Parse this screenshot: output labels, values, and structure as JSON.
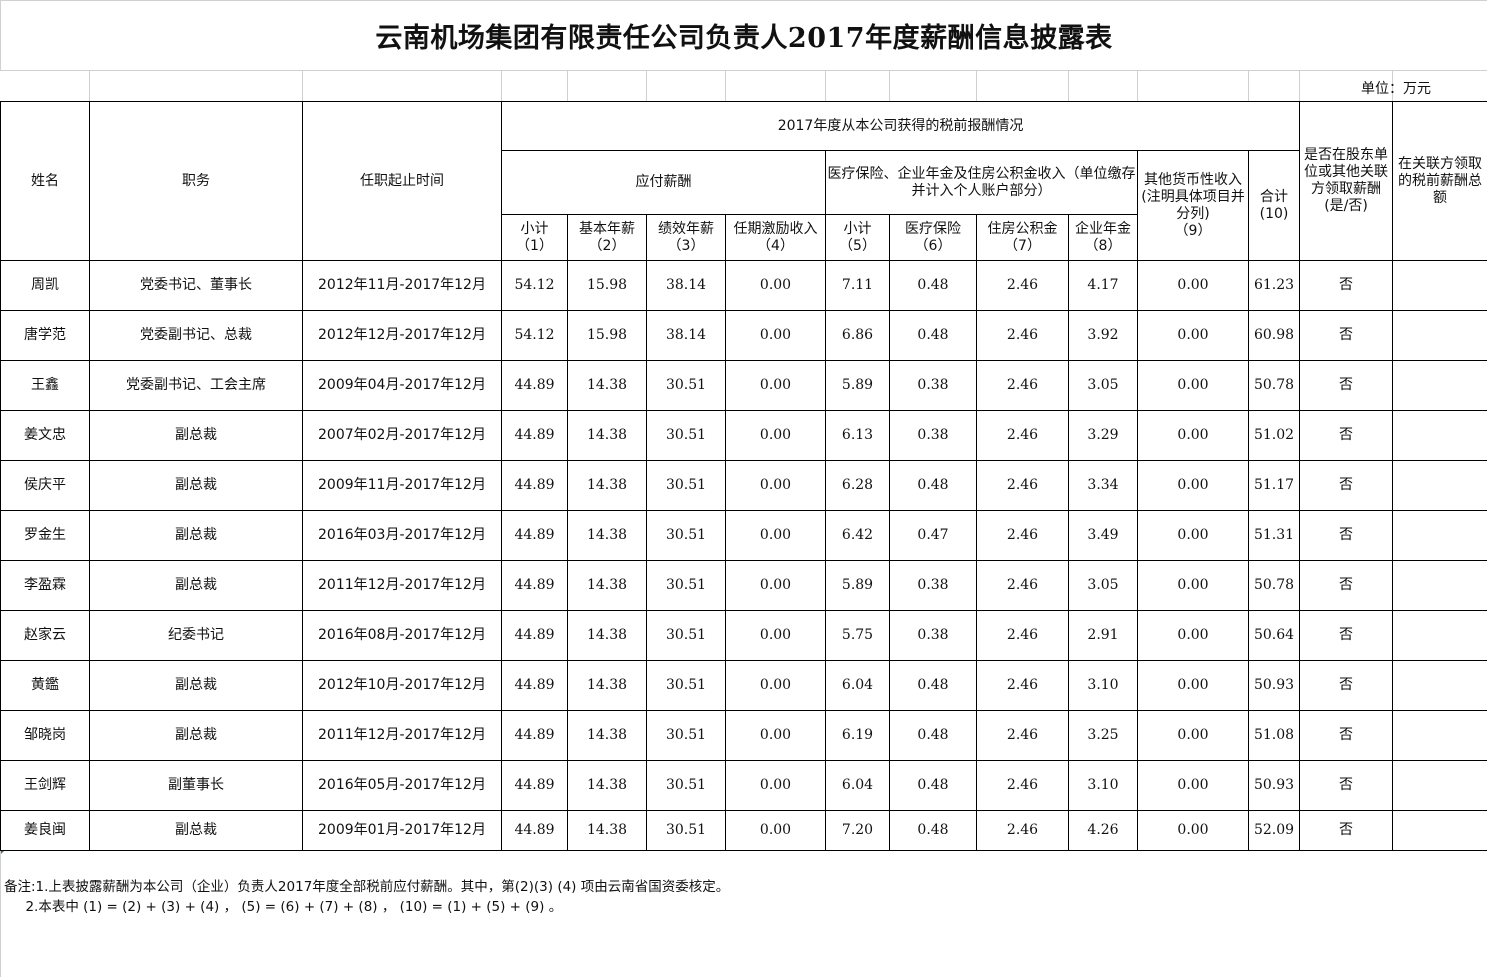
{
  "title": "云南机场集团有限责任公司负责人2017年度薪酬信息披露表",
  "unit": "单位：万元",
  "headers": {
    "name": "姓名",
    "position": "职务",
    "term": "任职起止时间",
    "pretax_group": "2017年度从本公司获得的税前报酬情况",
    "payable_group": "应付薪酬",
    "insurance_group": "医疗保险、企业年金及住房公积金收入（单位缴存并计入个人账户部分）",
    "subtotal1": "小计\n（1）",
    "base_salary": "基本年薪\n（2）",
    "performance_salary": "绩效年薪\n（3）",
    "incentive": "任期激励收入\n（4）",
    "subtotal5": "小计\n（5）",
    "medical": "医疗保险\n（6）",
    "housing_fund": "住房公积金\n（7）",
    "annuity": "企业年金\n（8）",
    "other_income": "其他货币性收入(注明具体项目并分列)\n（9）",
    "total": "合计\n(10)",
    "related_party_flag": "是否在股东单位或其他关联方领取薪酬\n(是/否)",
    "related_party_total": "在关联方领取的税前薪酬总额"
  },
  "rows": [
    {
      "name": "周凯",
      "position": "党委书记、董事长",
      "term": "2012年11月-2017年12月",
      "c1": "54.12",
      "c2": "15.98",
      "c3": "38.14",
      "c4": "0.00",
      "c5": "7.11",
      "c6": "0.48",
      "c7": "2.46",
      "c8": "4.17",
      "c9": "0.00",
      "c10": "61.23",
      "flag": "否",
      "rel": ""
    },
    {
      "name": "唐学范",
      "position": "党委副书记、总裁",
      "term": "2012年12月-2017年12月",
      "c1": "54.12",
      "c2": "15.98",
      "c3": "38.14",
      "c4": "0.00",
      "c5": "6.86",
      "c6": "0.48",
      "c7": "2.46",
      "c8": "3.92",
      "c9": "0.00",
      "c10": "60.98",
      "flag": "否",
      "rel": ""
    },
    {
      "name": "王鑫",
      "position": "党委副书记、工会主席",
      "term": "2009年04月-2017年12月",
      "c1": "44.89",
      "c2": "14.38",
      "c3": "30.51",
      "c4": "0.00",
      "c5": "5.89",
      "c6": "0.38",
      "c7": "2.46",
      "c8": "3.05",
      "c9": "0.00",
      "c10": "50.78",
      "flag": "否",
      "rel": ""
    },
    {
      "name": "姜文忠",
      "position": "副总裁",
      "term": "2007年02月-2017年12月",
      "c1": "44.89",
      "c2": "14.38",
      "c3": "30.51",
      "c4": "0.00",
      "c5": "6.13",
      "c6": "0.38",
      "c7": "2.46",
      "c8": "3.29",
      "c9": "0.00",
      "c10": "51.02",
      "flag": "否",
      "rel": ""
    },
    {
      "name": "侯庆平",
      "position": "副总裁",
      "term": "2009年11月-2017年12月",
      "c1": "44.89",
      "c2": "14.38",
      "c3": "30.51",
      "c4": "0.00",
      "c5": "6.28",
      "c6": "0.48",
      "c7": "2.46",
      "c8": "3.34",
      "c9": "0.00",
      "c10": "51.17",
      "flag": "否",
      "rel": ""
    },
    {
      "name": "罗金生",
      "position": "副总裁",
      "term": "2016年03月-2017年12月",
      "c1": "44.89",
      "c2": "14.38",
      "c3": "30.51",
      "c4": "0.00",
      "c5": "6.42",
      "c6": "0.47",
      "c7": "2.46",
      "c8": "3.49",
      "c9": "0.00",
      "c10": "51.31",
      "flag": "否",
      "rel": ""
    },
    {
      "name": "李盈霖",
      "position": "副总裁",
      "term": "2011年12月-2017年12月",
      "c1": "44.89",
      "c2": "14.38",
      "c3": "30.51",
      "c4": "0.00",
      "c5": "5.89",
      "c6": "0.38",
      "c7": "2.46",
      "c8": "3.05",
      "c9": "0.00",
      "c10": "50.78",
      "flag": "否",
      "rel": ""
    },
    {
      "name": "赵家云",
      "position": "纪委书记",
      "term": "2016年08月-2017年12月",
      "c1": "44.89",
      "c2": "14.38",
      "c3": "30.51",
      "c4": "0.00",
      "c5": "5.75",
      "c6": "0.38",
      "c7": "2.46",
      "c8": "2.91",
      "c9": "0.00",
      "c10": "50.64",
      "flag": "否",
      "rel": ""
    },
    {
      "name": "黄鑑",
      "position": "副总裁",
      "term": "2012年10月-2017年12月",
      "c1": "44.89",
      "c2": "14.38",
      "c3": "30.51",
      "c4": "0.00",
      "c5": "6.04",
      "c6": "0.48",
      "c7": "2.46",
      "c8": "3.10",
      "c9": "0.00",
      "c10": "50.93",
      "flag": "否",
      "rel": ""
    },
    {
      "name": "邹晓岗",
      "position": "副总裁",
      "term": "2011年12月-2017年12月",
      "c1": "44.89",
      "c2": "14.38",
      "c3": "30.51",
      "c4": "0.00",
      "c5": "6.19",
      "c6": "0.48",
      "c7": "2.46",
      "c8": "3.25",
      "c9": "0.00",
      "c10": "51.08",
      "flag": "否",
      "rel": ""
    },
    {
      "name": "王剑辉",
      "position": "副董事长",
      "term": "2016年05月-2017年12月",
      "c1": "44.89",
      "c2": "14.38",
      "c3": "30.51",
      "c4": "0.00",
      "c5": "6.04",
      "c6": "0.48",
      "c7": "2.46",
      "c8": "3.10",
      "c9": "0.00",
      "c10": "50.93",
      "flag": "否",
      "rel": ""
    },
    {
      "name": "姜良闽",
      "position": "副总裁",
      "term": "2009年01月-2017年12月",
      "c1": "44.89",
      "c2": "14.38",
      "c3": "30.51",
      "c4": "0.00",
      "c5": "7.20",
      "c6": "0.48",
      "c7": "2.46",
      "c8": "4.26",
      "c9": "0.00",
      "c10": "52.09",
      "flag": "否",
      "rel": ""
    }
  ],
  "notes": [
    "备注:1.上表披露薪酬为本公司（企业）负责人2017年度全部税前应付薪酬。其中，第(2)(3) (4) 项由云南省国资委核定。",
    "     2.本表中 (1) = (2) + (3) + (4) ， (5) = (6) + (7) + (8) ， (10) = (1) + (5) + (9) 。"
  ]
}
